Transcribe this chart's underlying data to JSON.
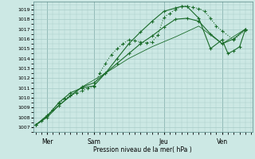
{
  "title": "Pression niveau de la mer( hPa )",
  "ylabel_ticks": [
    1007,
    1008,
    1009,
    1010,
    1011,
    1012,
    1013,
    1014,
    1015,
    1016,
    1017,
    1018,
    1019
  ],
  "ylim": [
    1006.5,
    1019.8
  ],
  "xlim": [
    -0.1,
    9.3
  ],
  "xtick_positions": [
    0.5,
    2.5,
    5.5,
    8.0
  ],
  "xtick_labels": [
    "Mer",
    "Sam",
    "Jeu",
    "Ven"
  ],
  "vlines": [
    0.5,
    2.5,
    5.5,
    8.0
  ],
  "bg_color": "#cce8e4",
  "grid_color": "#a8ccc8",
  "line_color": "#1a6b2a",
  "line1_x": [
    0.0,
    0.25,
    0.5,
    0.75,
    1.0,
    1.25,
    1.5,
    1.75,
    2.0,
    2.25,
    2.5,
    2.75,
    3.0,
    3.25,
    3.5,
    3.75,
    4.0,
    4.25,
    4.5,
    4.75,
    5.0,
    5.25,
    5.5,
    5.75,
    6.0,
    6.25,
    6.5,
    6.75,
    7.0,
    7.25,
    7.5,
    7.75,
    8.0,
    8.5,
    9.0
  ],
  "line1_y": [
    1007.2,
    1007.6,
    1008.2,
    1008.8,
    1009.4,
    1009.9,
    1010.2,
    1010.5,
    1010.7,
    1011.0,
    1011.1,
    1012.5,
    1013.5,
    1014.4,
    1015.0,
    1015.5,
    1015.9,
    1015.8,
    1015.7,
    1015.6,
    1015.7,
    1016.4,
    1018.2,
    1018.6,
    1019.0,
    1019.3,
    1019.35,
    1019.2,
    1019.1,
    1018.8,
    1018.1,
    1017.3,
    1016.8,
    1015.9,
    1016.9
  ],
  "line2_x": [
    0.0,
    0.5,
    1.0,
    1.5,
    2.0,
    2.5,
    3.0,
    3.5,
    4.0,
    4.5,
    5.0,
    5.5,
    6.0,
    6.25,
    6.5,
    7.0,
    7.5,
    8.0,
    8.25,
    8.5,
    8.75,
    9.0
  ],
  "line2_y": [
    1007.2,
    1008.1,
    1009.5,
    1010.5,
    1011.0,
    1011.2,
    1012.5,
    1014.0,
    1015.5,
    1016.7,
    1017.8,
    1018.8,
    1019.15,
    1019.3,
    1019.3,
    1018.1,
    1015.0,
    1015.9,
    1014.5,
    1014.8,
    1015.2,
    1017.0
  ],
  "line3_x": [
    0.0,
    0.5,
    1.0,
    1.5,
    2.0,
    2.5,
    3.0,
    3.5,
    4.0,
    4.5,
    5.0,
    5.5,
    6.0,
    6.5,
    7.0,
    7.5,
    8.0,
    8.5,
    9.0
  ],
  "line3_y": [
    1007.2,
    1008.0,
    1009.2,
    1010.2,
    1011.1,
    1011.5,
    1012.5,
    1013.5,
    1014.5,
    1015.5,
    1016.3,
    1017.2,
    1018.0,
    1018.1,
    1017.8,
    1016.5,
    1015.5,
    1016.0,
    1017.0
  ],
  "line4_x": [
    0.0,
    1.0,
    2.0,
    3.0,
    4.0,
    5.0,
    6.0,
    7.0,
    8.0,
    9.0
  ],
  "line4_y": [
    1007.2,
    1009.2,
    1011.1,
    1012.5,
    1014.0,
    1015.2,
    1016.2,
    1017.3,
    1015.5,
    1017.0
  ]
}
